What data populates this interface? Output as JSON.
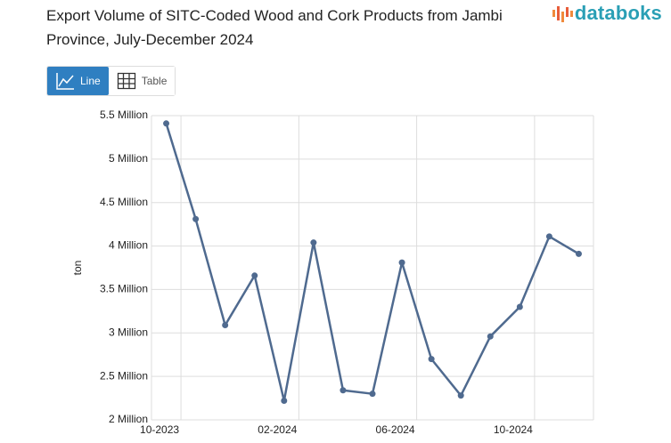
{
  "logo": "databoks",
  "buttons": [
    "Line",
    "Table"
  ],
  "chart_data": {
    "type": "line",
    "title": "Export Volume of SITC-Coded Wood and Cork Products from Jambi Province, July-December 2024",
    "y_label": "ton",
    "x": [
      "2023-09",
      "2023-10",
      "2023-11",
      "2023-12",
      "2024-01",
      "2024-02",
      "2024-03",
      "2024-04",
      "2024-05",
      "2024-06",
      "2024-07",
      "2024-08",
      "2024-09",
      "2024-10",
      "2024-11"
    ],
    "series": [
      {
        "name": "ton",
        "color": "#4f6a8f",
        "values": [
          5410000,
          4310000,
          3090000,
          3660000,
          2220000,
          4040000,
          2340000,
          2300000,
          3810000,
          2700000,
          2280000,
          2960000,
          3300000,
          4110000,
          3910000
        ]
      }
    ],
    "xlim": [
      "2023-09",
      "2024-12"
    ],
    "xticks": [
      {
        "value": "2023-10",
        "label": "10-2023"
      },
      {
        "value": "2024-02",
        "label": "02-2024"
      },
      {
        "value": "2024-06",
        "label": "06-2024"
      },
      {
        "value": "2024-10",
        "label": "10-2024"
      }
    ],
    "ylim": [
      2000000,
      5500000
    ],
    "yticks": [
      {
        "value": 2000000,
        "label": "2 Million"
      },
      {
        "value": 2500000,
        "label": "2.5 Million"
      },
      {
        "value": 3000000,
        "label": "3 Million"
      },
      {
        "value": 3500000,
        "label": "3.5 Million"
      },
      {
        "value": 4000000,
        "label": "4 Million"
      },
      {
        "value": 4500000,
        "label": "4.5 Million"
      },
      {
        "value": 5000000,
        "label": "5 Million"
      },
      {
        "value": 5500000,
        "label": "5.5 Million"
      }
    ],
    "grid": true
  }
}
